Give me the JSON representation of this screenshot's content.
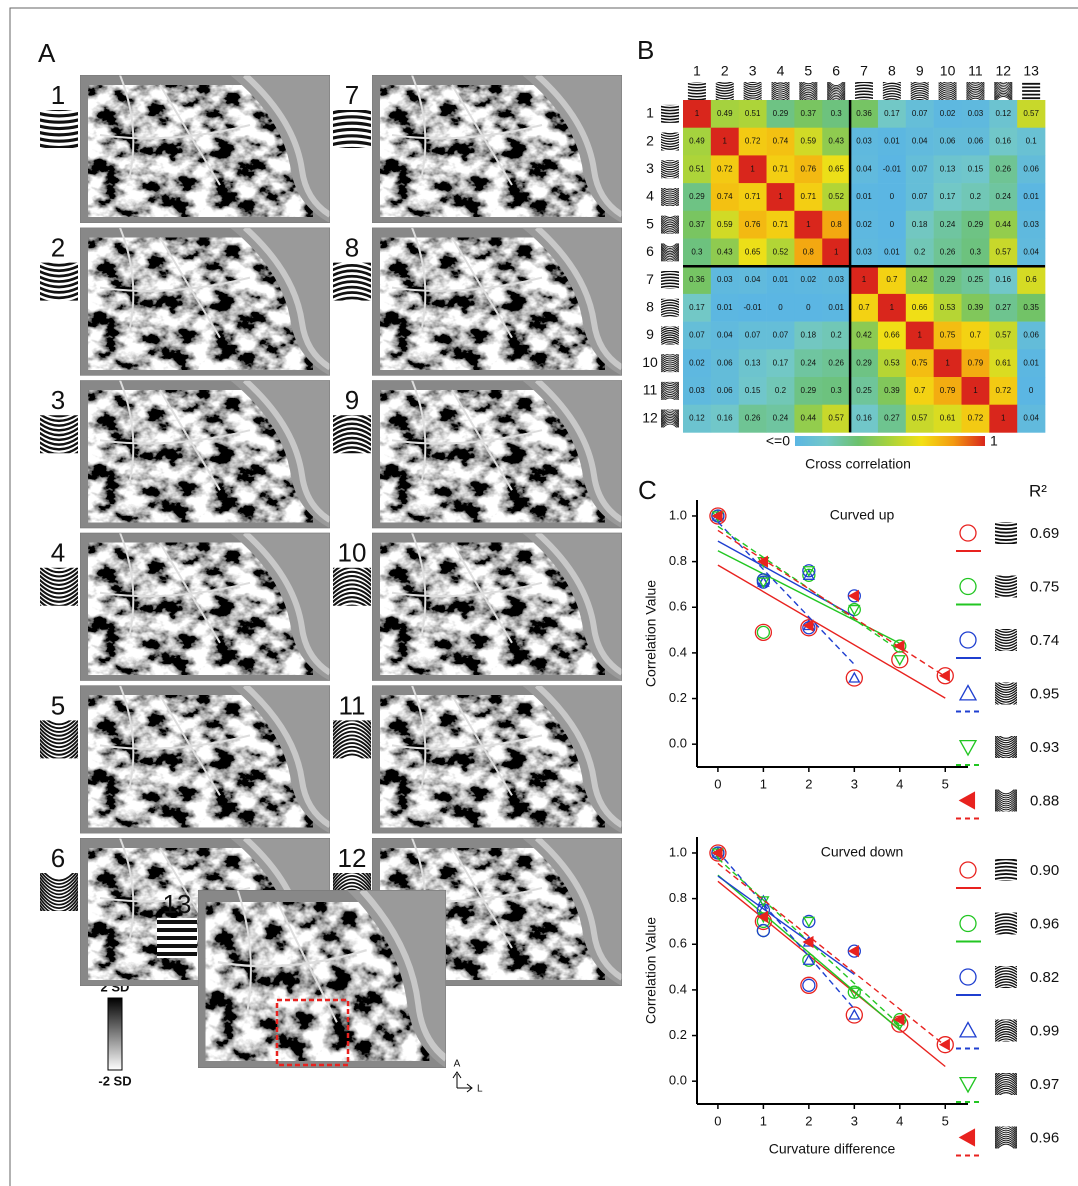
{
  "panel_labels": [
    "A",
    "B",
    "C"
  ],
  "panel_a": {
    "maps": [
      1,
      2,
      3,
      4,
      5,
      6,
      7,
      8,
      9,
      10,
      11,
      12,
      13
    ],
    "colorbar": {
      "top": "2 SD",
      "bottom": "-2 SD"
    },
    "orientation": {
      "up": "A",
      "right": "L"
    }
  },
  "chart_data": [
    {
      "type": "heatmap",
      "columns": [
        1,
        2,
        3,
        4,
        5,
        6,
        7,
        8,
        9,
        10,
        11,
        12,
        13
      ],
      "rows": [
        1,
        2,
        3,
        4,
        5,
        6,
        7,
        8,
        9,
        10,
        11,
        12
      ],
      "values": [
        [
          1,
          0.49,
          0.51,
          0.29,
          0.37,
          0.3,
          0.36,
          0.17,
          0.07,
          0.02,
          0.03,
          0.12,
          0.57
        ],
        [
          0.49,
          1,
          0.72,
          0.74,
          0.59,
          0.43,
          0.03,
          0.01,
          0.04,
          0.06,
          0.06,
          0.16,
          0.1
        ],
        [
          0.51,
          0.72,
          1,
          0.71,
          0.76,
          0.65,
          0.04,
          -0.01,
          0.07,
          0.13,
          0.15,
          0.26,
          0.06
        ],
        [
          0.29,
          0.74,
          0.71,
          1,
          0.71,
          0.52,
          0.01,
          0,
          0.07,
          0.17,
          0.2,
          0.24,
          0.01
        ],
        [
          0.37,
          0.59,
          0.76,
          0.71,
          1,
          0.8,
          0.02,
          0,
          0.18,
          0.24,
          0.29,
          0.44,
          0.03
        ],
        [
          0.3,
          0.43,
          0.65,
          0.52,
          0.8,
          1,
          0.03,
          0.01,
          0.2,
          0.26,
          0.3,
          0.57,
          0.04
        ],
        [
          0.36,
          0.03,
          0.04,
          0.01,
          0.02,
          0.03,
          1,
          0.7,
          0.42,
          0.29,
          0.25,
          0.16,
          0.6
        ],
        [
          0.17,
          0.01,
          -0.01,
          0,
          0,
          0.01,
          0.7,
          1,
          0.66,
          0.53,
          0.39,
          0.27,
          0.35
        ],
        [
          0.07,
          0.04,
          0.07,
          0.07,
          0.18,
          0.2,
          0.42,
          0.66,
          1,
          0.75,
          0.7,
          0.57,
          0.06
        ],
        [
          0.02,
          0.06,
          0.13,
          0.17,
          0.24,
          0.26,
          0.29,
          0.53,
          0.75,
          1,
          0.79,
          0.61,
          0.01
        ],
        [
          0.03,
          0.06,
          0.15,
          0.2,
          0.29,
          0.3,
          0.25,
          0.39,
          0.7,
          0.79,
          1,
          0.72,
          0
        ],
        [
          0.12,
          0.16,
          0.26,
          0.24,
          0.44,
          0.57,
          0.16,
          0.27,
          0.57,
          0.61,
          0.72,
          1,
          0.04
        ]
      ],
      "colormap": [
        "#5bb6e3",
        "#72c8c8",
        "#6cc16c",
        "#a9d33b",
        "#f3e014",
        "#f39a10",
        "#d9261c"
      ],
      "colorbar_ticks": [
        {
          "value": 0,
          "label": "<=0"
        },
        1
      ],
      "colorbar_title": "Cross correlation"
    },
    {
      "type": "scatter",
      "title": "Curved up",
      "ylabel": "Correlation Value",
      "r2_title": "R²",
      "xlim": [
        -0.46,
        5.5
      ],
      "ylim": [
        -0.1,
        1.07
      ],
      "xticks": [
        0,
        1,
        2,
        3,
        4,
        5
      ],
      "yticks": [
        {
          "value": 0,
          "label": "0.0"
        },
        0.2,
        0.4,
        0.6,
        0.8,
        {
          "value": 1,
          "label": "1.0"
        }
      ],
      "series": [
        {
          "color": "#e8221f",
          "marker": "circle",
          "dash": false,
          "icon": 1,
          "x": [
            0,
            1,
            2,
            3,
            4,
            5
          ],
          "values": [
            1,
            0.49,
            0.51,
            0.29,
            0.37,
            0.3
          ],
          "r2": "0.69"
        },
        {
          "color": "#22c622",
          "marker": "circle",
          "dash": false,
          "icon": 2,
          "x": [
            0,
            1,
            1,
            2,
            3,
            4
          ],
          "values": [
            1,
            0.49,
            0.72,
            0.74,
            0.59,
            0.43
          ],
          "r2": "0.75"
        },
        {
          "color": "#1f3fd0",
          "marker": "circle",
          "dash": false,
          "icon": 3,
          "x": [
            0,
            2,
            1,
            1,
            2,
            3
          ],
          "values": [
            1,
            0.51,
            0.72,
            0.71,
            0.76,
            0.65
          ],
          "r2": "0.74"
        },
        {
          "color": "#1f3fd0",
          "marker": "triangle-up",
          "dash": true,
          "icon": 4,
          "x": [
            0,
            3,
            2,
            1,
            1,
            2
          ],
          "values": [
            1,
            0.29,
            0.74,
            0.71,
            0.71,
            0.52
          ],
          "r2": "0.95"
        },
        {
          "color": "#22c622",
          "marker": "triangle-down",
          "dash": true,
          "icon": 5,
          "x": [
            0,
            4,
            3,
            2,
            1,
            1
          ],
          "values": [
            1,
            0.37,
            0.59,
            0.76,
            0.71,
            0.8
          ],
          "r2": "0.93"
        },
        {
          "color": "#e8221f",
          "marker": "triangle-left",
          "dash": true,
          "icon": 6,
          "x": [
            0,
            5,
            4,
            3,
            2,
            1
          ],
          "values": [
            1,
            0.3,
            0.43,
            0.65,
            0.52,
            0.8
          ],
          "r2": "0.88"
        }
      ]
    },
    {
      "type": "scatter",
      "title": "Curved down",
      "ylabel": "Correlation Value",
      "xlabel": "Curvature difference",
      "xlim": [
        -0.46,
        5.5
      ],
      "ylim": [
        -0.1,
        1.07
      ],
      "xticks": [
        0,
        1,
        2,
        3,
        4,
        5
      ],
      "yticks": [
        {
          "value": 0,
          "label": "0.0"
        },
        0.2,
        0.4,
        0.6,
        0.8,
        {
          "value": 1,
          "label": "1.0"
        }
      ],
      "series": [
        {
          "color": "#e8221f",
          "marker": "circle",
          "dash": false,
          "icon": 7,
          "x": [
            0,
            1,
            2,
            3,
            4,
            5
          ],
          "values": [
            1,
            0.7,
            0.42,
            0.29,
            0.25,
            0.16
          ],
          "r2": "0.90"
        },
        {
          "color": "#22c622",
          "marker": "circle",
          "dash": false,
          "icon": 8,
          "x": [
            0,
            1,
            1,
            2,
            3,
            4
          ],
          "values": [
            1,
            0.7,
            0.66,
            0.53,
            0.39,
            0.27
          ],
          "r2": "0.96"
        },
        {
          "color": "#1f3fd0",
          "marker": "circle",
          "dash": false,
          "icon": 9,
          "x": [
            0,
            2,
            1,
            1,
            2,
            3
          ],
          "values": [
            1,
            0.42,
            0.66,
            0.75,
            0.7,
            0.57
          ],
          "r2": "0.82"
        },
        {
          "color": "#1f3fd0",
          "marker": "triangle-up",
          "dash": true,
          "icon": 10,
          "x": [
            0,
            3,
            2,
            1,
            1,
            2
          ],
          "values": [
            1,
            0.29,
            0.53,
            0.75,
            0.79,
            0.61
          ],
          "r2": "0.99"
        },
        {
          "color": "#22c622",
          "marker": "triangle-down",
          "dash": true,
          "icon": 11,
          "x": [
            0,
            4,
            3,
            2,
            1,
            1
          ],
          "values": [
            1,
            0.25,
            0.39,
            0.7,
            0.79,
            0.72
          ],
          "r2": "0.97"
        },
        {
          "color": "#e8221f",
          "marker": "triangle-left",
          "dash": true,
          "icon": 12,
          "x": [
            0,
            5,
            4,
            3,
            2,
            1
          ],
          "values": [
            1,
            0.16,
            0.27,
            0.57,
            0.61,
            0.72
          ],
          "r2": "0.96"
        }
      ]
    }
  ]
}
